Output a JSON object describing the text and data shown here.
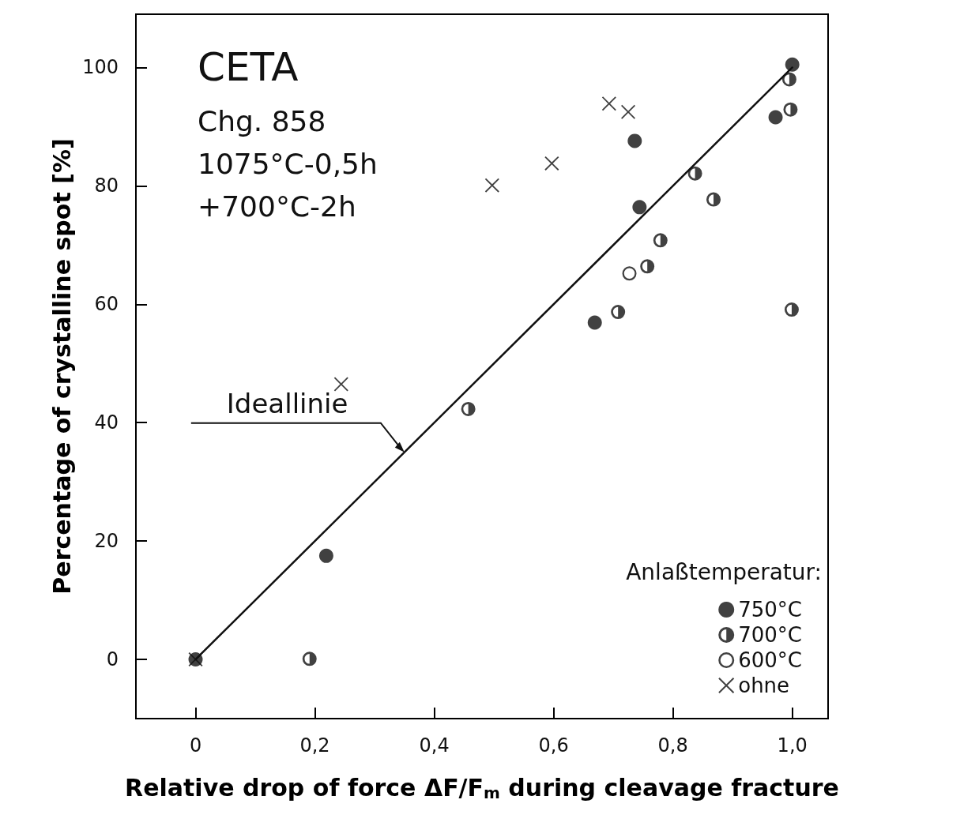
{
  "chart_data": {
    "type": "scatter",
    "title": "CETA",
    "subtitle": "Chg. 858\n1075°C-0,5h\n+700°C-2h",
    "xlabel": "Relative drop of force ΔF/F$_{m}$ during cleavage fracture",
    "ylabel": "Percentage of crystalline spot [%]",
    "legend_title": "Anlaßtemperatur:",
    "legend": "bottom right",
    "grid": false,
    "xlim": [
      -0.1,
      1.06
    ],
    "ylim": [
      -10,
      109
    ],
    "xticks": [
      0,
      {
        "value": 0.2,
        "label": "0,2"
      },
      {
        "value": 0.4,
        "label": "0,4"
      },
      {
        "value": 0.6,
        "label": "0,6"
      },
      {
        "value": 0.8,
        "label": "0,8"
      },
      {
        "value": 1.0,
        "label": "1,0"
      }
    ],
    "yticks": [
      0,
      20,
      40,
      60,
      80,
      100
    ],
    "annotations": [
      {
        "text": "Ideallinie",
        "x": 0.35,
        "y": 35
      }
    ],
    "series": [
      {
        "name": "750°C",
        "color": "#111111",
        "marker": "circle",
        "x": [
          0,
          0.219,
          0.669,
          0.744,
          0.736,
          0.972,
          1.0
        ],
        "values": [
          0,
          17.5,
          56.9,
          76.4,
          87.6,
          91.6,
          100.5
        ]
      },
      {
        "name": "700°C",
        "color": "#111111",
        "marker": "half-circle",
        "x": [
          0.191,
          0.457,
          0.708,
          0.757,
          0.779,
          0.837,
          0.868,
          0.997,
          0.999,
          0.995
        ],
        "values": [
          0.1,
          42.3,
          58.7,
          66.4,
          70.8,
          82.1,
          77.7,
          92.9,
          59.1,
          98
        ]
      },
      {
        "name": "600°C",
        "color": "#111111",
        "marker": "open-circle",
        "x": [
          0.727
        ],
        "values": [
          65.2
        ]
      },
      {
        "name": "ohne",
        "color": "#111111",
        "marker": "cross",
        "x": [
          0,
          0.244,
          0.497,
          0.597,
          0.693,
          0.725
        ],
        "values": [
          0,
          46.5,
          80.1,
          83.8,
          93.9,
          92.5
        ]
      },
      {
        "type": "line",
        "color": "#111111",
        "line_style": "solid",
        "marker": "none",
        "x": [
          0,
          1
        ],
        "values": [
          0,
          100
        ]
      }
    ]
  }
}
